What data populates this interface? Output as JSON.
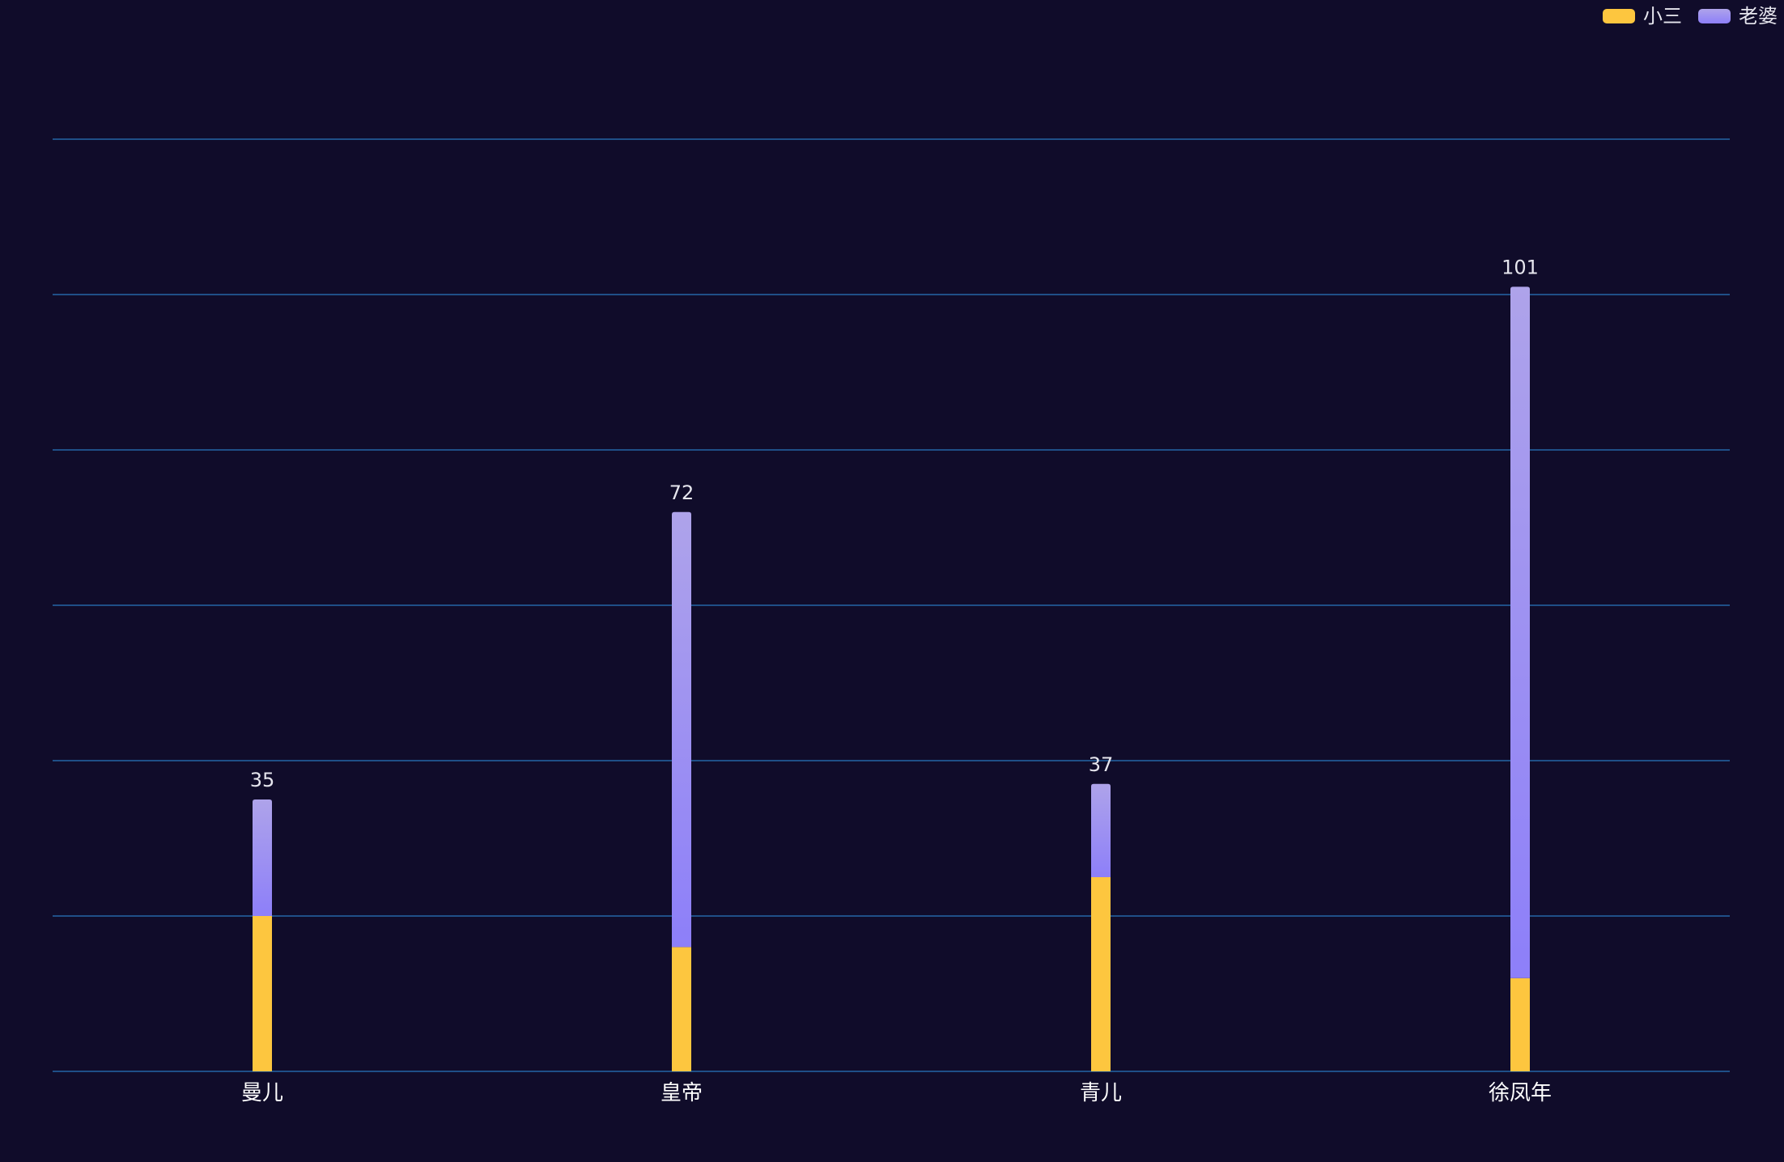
{
  "chart_data": {
    "type": "bar",
    "stacked": true,
    "categories": [
      "曼儿",
      "皇帝",
      "青儿",
      "徐凤年"
    ],
    "series": [
      {
        "name": "小三",
        "values": [
          20,
          16,
          25,
          12
        ],
        "color": "#fdc63f"
      },
      {
        "name": "老婆",
        "values": [
          15,
          56,
          12,
          89
        ],
        "color": "#9e8ff5"
      }
    ],
    "totals": [
      35,
      72,
      37,
      101
    ],
    "ylim": [
      0,
      120
    ],
    "grid": true,
    "legend_position": "top-right"
  }
}
